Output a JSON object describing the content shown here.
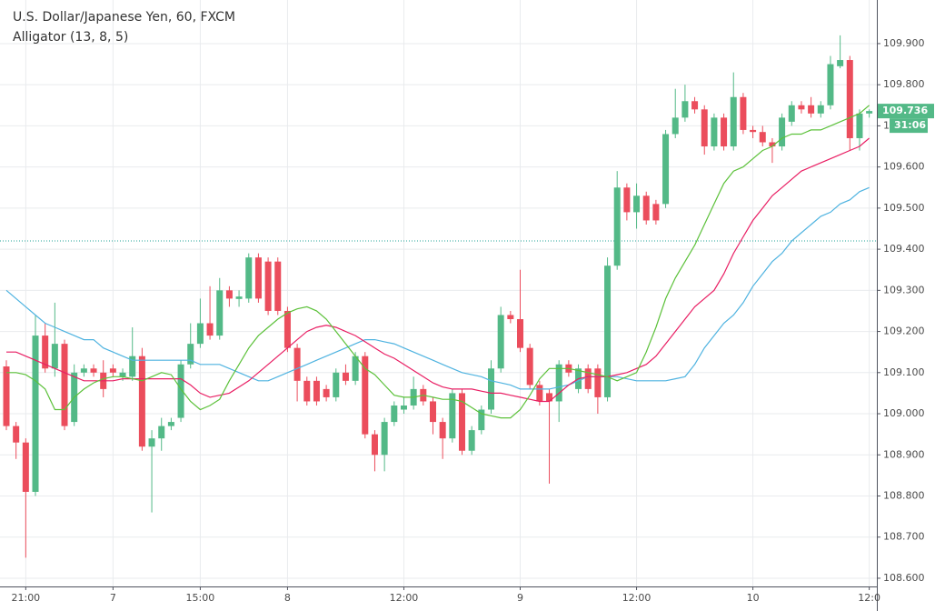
{
  "chart_data": {
    "type": "candlestick",
    "title": "U.S. Dollar/Japanese Yen, 60, FXCM",
    "subtitle": "Alligator (13, 8, 5)",
    "categories": [
      null,
      null,
      "21:00",
      null,
      null,
      null,
      null,
      null,
      null,
      null,
      null,
      "7",
      null,
      null,
      null,
      null,
      null,
      null,
      null,
      null,
      "15:00",
      null,
      null,
      null,
      null,
      null,
      null,
      null,
      null,
      "8",
      null,
      null,
      null,
      null,
      null,
      null,
      null,
      null,
      null,
      null,
      null,
      "12:00",
      null,
      null,
      null,
      null,
      null,
      null,
      null,
      null,
      null,
      null,
      null,
      "9",
      null,
      null,
      null,
      null,
      null,
      null,
      null,
      null,
      null,
      null,
      null,
      "12:00",
      null,
      null,
      null,
      null,
      null,
      null,
      null,
      null,
      null,
      null,
      null,
      "10",
      null,
      null,
      null,
      null,
      null,
      null,
      null,
      null,
      null,
      null,
      null,
      "12:0"
    ],
    "open": [
      109.115,
      108.97,
      108.93,
      108.81,
      109.19,
      109.11,
      109.17,
      108.98,
      109.1,
      109.11,
      109.1,
      109.11,
      109.09,
      109.09,
      109.14,
      108.92,
      108.94,
      108.97,
      108.99,
      109.12,
      109.17,
      109.22,
      109.19,
      109.3,
      109.279,
      109.28,
      109.38,
      109.37,
      109.37,
      109.25,
      109.16,
      109.08,
      109.08,
      109.06,
      109.04,
      109.1,
      109.08,
      109.14,
      108.95,
      108.9,
      108.98,
      109.01,
      109.02,
      109.06,
      109.03,
      108.98,
      108.94,
      109.05,
      108.91,
      108.96,
      109.01,
      109.11,
      109.24,
      109.23,
      109.16,
      109.07,
      109.05,
      109.03,
      109.12,
      109.06,
      109.11,
      109.11,
      109.04,
      109.36,
      109.55,
      109.49,
      109.53,
      109.51,
      109.51,
      109.68,
      109.72,
      109.76,
      109.74,
      109.65,
      109.72,
      109.65,
      109.77,
      109.69,
      109.685,
      109.66,
      109.65,
      109.71,
      109.75,
      109.75,
      109.73,
      109.75,
      109.845,
      109.86,
      109.67,
      109.73
    ],
    "high": [
      109.13,
      108.98,
      108.94,
      109.24,
      109.22,
      109.27,
      109.18,
      109.12,
      109.12,
      109.12,
      109.13,
      109.12,
      109.11,
      109.21,
      109.16,
      108.96,
      108.99,
      108.99,
      109.13,
      109.22,
      109.28,
      109.31,
      109.33,
      109.31,
      109.3,
      109.39,
      109.39,
      109.38,
      109.38,
      109.26,
      109.17,
      109.09,
      109.09,
      109.07,
      109.11,
      109.12,
      109.15,
      109.15,
      108.96,
      108.99,
      109.03,
      109.04,
      109.09,
      109.07,
      109.04,
      108.99,
      109.06,
      109.06,
      108.97,
      109.02,
      109.13,
      109.26,
      109.25,
      109.35,
      109.17,
      109.08,
      109.06,
      109.13,
      109.13,
      109.12,
      109.12,
      109.12,
      109.38,
      109.59,
      109.56,
      109.56,
      109.54,
      109.52,
      109.69,
      109.79,
      109.8,
      109.77,
      109.75,
      109.73,
      109.73,
      109.83,
      109.78,
      109.7,
      109.7,
      109.67,
      109.73,
      109.76,
      109.76,
      109.77,
      109.76,
      109.87,
      109.92,
      109.87,
      109.74,
      109.74
    ],
    "low": [
      108.96,
      108.89,
      108.65,
      108.8,
      109.1,
      109.09,
      108.96,
      108.97,
      109.09,
      109.09,
      109.04,
      109.09,
      109.08,
      109.08,
      108.91,
      108.76,
      108.91,
      108.96,
      108.98,
      109.11,
      109.16,
      109.18,
      109.18,
      109.26,
      109.26,
      109.27,
      109.27,
      109.24,
      109.24,
      109.15,
      109.03,
      109.02,
      109.02,
      109.03,
      109.03,
      109.07,
      109.07,
      108.94,
      108.86,
      108.86,
      108.97,
      109.0,
      109.01,
      109.02,
      108.95,
      108.89,
      108.93,
      108.9,
      108.9,
      108.95,
      109.0,
      109.1,
      109.22,
      109.15,
      109.06,
      109.02,
      108.83,
      108.98,
      109.09,
      109.05,
      109.05,
      109.0,
      109.03,
      109.35,
      109.47,
      109.45,
      109.46,
      109.46,
      109.5,
      109.67,
      109.71,
      109.73,
      109.63,
      109.64,
      109.64,
      109.64,
      109.68,
      109.67,
      109.65,
      109.61,
      109.64,
      109.7,
      109.73,
      109.72,
      109.72,
      109.74,
      109.84,
      109.64,
      109.64,
      109.72
    ],
    "close": [
      108.97,
      108.93,
      108.81,
      109.19,
      109.11,
      109.17,
      108.97,
      109.1,
      109.11,
      109.1,
      109.06,
      109.1,
      109.1,
      109.14,
      108.92,
      108.94,
      108.97,
      108.98,
      109.12,
      109.17,
      109.22,
      109.19,
      109.3,
      109.28,
      109.285,
      109.38,
      109.28,
      109.25,
      109.25,
      109.16,
      109.08,
      109.03,
      109.03,
      109.04,
      109.1,
      109.08,
      109.14,
      108.95,
      108.9,
      108.98,
      109.02,
      109.02,
      109.06,
      109.03,
      108.98,
      108.94,
      109.05,
      108.91,
      108.96,
      109.01,
      109.11,
      109.24,
      109.23,
      109.16,
      109.07,
      109.03,
      109.03,
      109.12,
      109.1,
      109.11,
      109.06,
      109.04,
      109.36,
      109.55,
      109.49,
      109.53,
      109.47,
      109.47,
      109.68,
      109.72,
      109.76,
      109.74,
      109.65,
      109.72,
      109.65,
      109.77,
      109.69,
      109.685,
      109.66,
      109.65,
      109.72,
      109.75,
      109.74,
      109.73,
      109.75,
      109.85,
      109.86,
      109.67,
      109.73,
      109.736
    ],
    "up_color": "#53b987",
    "down_color": "#eb4d5c",
    "series": [
      {
        "color": "#4fb3e0",
        "values": [
          109.3,
          109.28,
          109.26,
          109.24,
          109.22,
          109.21,
          109.2,
          109.19,
          109.18,
          109.18,
          109.16,
          109.15,
          109.14,
          109.13,
          109.13,
          109.13,
          109.13,
          109.13,
          109.13,
          109.13,
          109.12,
          109.12,
          109.12,
          109.11,
          109.1,
          109.09,
          109.08,
          109.08,
          109.09,
          109.1,
          109.11,
          109.12,
          109.13,
          109.14,
          109.15,
          109.16,
          109.17,
          109.18,
          109.18,
          109.175,
          109.17,
          109.16,
          109.15,
          109.14,
          109.13,
          109.12,
          109.11,
          109.1,
          109.095,
          109.09,
          109.08,
          109.075,
          109.07,
          109.06,
          109.06,
          109.06,
          109.06,
          109.065,
          109.07,
          109.08,
          109.09,
          109.09,
          109.09,
          109.09,
          109.085,
          109.08,
          109.08,
          109.08,
          109.08,
          109.085,
          109.09,
          109.12,
          109.16,
          109.19,
          109.22,
          109.24,
          109.27,
          109.31,
          109.34,
          109.37,
          109.39,
          109.42,
          109.44,
          109.46,
          109.48,
          109.49,
          109.51,
          109.52,
          109.54,
          109.55
        ]
      },
      {
        "color": "#e91e63",
        "values": [
          109.15,
          109.15,
          109.14,
          109.13,
          109.12,
          109.11,
          109.1,
          109.09,
          109.08,
          109.08,
          109.08,
          109.08,
          109.085,
          109.085,
          109.085,
          109.085,
          109.085,
          109.085,
          109.085,
          109.07,
          109.05,
          109.04,
          109.045,
          109.05,
          109.065,
          109.08,
          109.1,
          109.12,
          109.14,
          109.16,
          109.18,
          109.2,
          109.21,
          109.215,
          109.21,
          109.2,
          109.19,
          109.175,
          109.16,
          109.145,
          109.135,
          109.12,
          109.105,
          109.09,
          109.075,
          109.065,
          109.06,
          109.06,
          109.06,
          109.055,
          109.05,
          109.05,
          109.045,
          109.04,
          109.035,
          109.03,
          109.03,
          109.05,
          109.07,
          109.085,
          109.09,
          109.09,
          109.09,
          109.095,
          109.1,
          109.11,
          109.12,
          109.14,
          109.17,
          109.2,
          109.23,
          109.26,
          109.28,
          109.3,
          109.34,
          109.39,
          109.43,
          109.47,
          109.5,
          109.53,
          109.55,
          109.57,
          109.59,
          109.6,
          109.61,
          109.62,
          109.63,
          109.64,
          109.65,
          109.67
        ]
      },
      {
        "color": "#5cc13a",
        "values": [
          109.1,
          109.1,
          109.095,
          109.08,
          109.06,
          109.01,
          109.01,
          109.04,
          109.06,
          109.075,
          109.085,
          109.09,
          109.09,
          109.085,
          109.08,
          109.09,
          109.1,
          109.095,
          109.06,
          109.03,
          109.01,
          109.02,
          109.035,
          109.08,
          109.12,
          109.16,
          109.19,
          109.21,
          109.23,
          109.245,
          109.255,
          109.26,
          109.25,
          109.23,
          109.2,
          109.17,
          109.14,
          109.11,
          109.095,
          109.07,
          109.045,
          109.04,
          109.04,
          109.045,
          109.04,
          109.035,
          109.035,
          109.03,
          109.015,
          109.0,
          108.995,
          108.99,
          108.99,
          109.01,
          109.045,
          109.085,
          109.11,
          109.11,
          109.11,
          109.105,
          109.1,
          109.095,
          109.09,
          109.08,
          109.09,
          109.1,
          109.15,
          109.21,
          109.28,
          109.33,
          109.37,
          109.41,
          109.46,
          109.51,
          109.56,
          109.59,
          109.6,
          109.62,
          109.64,
          109.65,
          109.67,
          109.68,
          109.68,
          109.69,
          109.69,
          109.7,
          109.71,
          109.72,
          109.73,
          109.75
        ]
      }
    ],
    "ylim": [
      108.58,
      110.006
    ],
    "yticks": [
      {
        "value": 108.6,
        "label": "108.600"
      },
      {
        "value": 108.7,
        "label": "108.700"
      },
      {
        "value": 108.8,
        "label": "108.800"
      },
      {
        "value": 108.9,
        "label": "108.900"
      },
      {
        "value": 109.0,
        "label": "109.000"
      },
      {
        "value": 109.1,
        "label": "109.100"
      },
      {
        "value": 109.2,
        "label": "109.200"
      },
      {
        "value": 109.3,
        "label": "109.300"
      },
      {
        "value": 109.4,
        "label": "109.400"
      },
      {
        "value": 109.5,
        "label": "109.500"
      },
      {
        "value": 109.6,
        "label": "109.600"
      },
      {
        "value": 109.7,
        "label": "109.700"
      },
      {
        "value": 109.8,
        "label": "109.800"
      },
      {
        "value": 109.9,
        "label": "109.900"
      }
    ],
    "grid": true,
    "reference_line": 109.42,
    "last_price": 109.736,
    "countdown": "31:06"
  }
}
